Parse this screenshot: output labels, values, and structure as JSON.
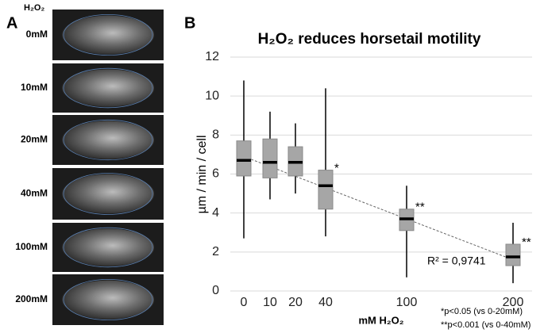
{
  "panel_a": {
    "label": "A",
    "header": "H₂O₂",
    "rows": [
      "0mM",
      "10mM",
      "20mM",
      "40mM",
      "100mM",
      "200mM"
    ]
  },
  "panel_b_label": "B",
  "chart_data": {
    "type": "box",
    "title": "H₂O₂  reduces horsetail motility",
    "y_label": "µm / min / cell",
    "x_label": "mM H₂O₂",
    "categories": [
      "0",
      "10",
      "20",
      "40",
      "100",
      "200"
    ],
    "boxes": [
      {
        "low": 2.7,
        "q1": 5.9,
        "median": 6.7,
        "q3": 7.7,
        "high": 10.8
      },
      {
        "low": 4.7,
        "q1": 5.8,
        "median": 6.6,
        "q3": 7.8,
        "high": 9.2
      },
      {
        "low": 5.0,
        "q1": 5.9,
        "median": 6.6,
        "q3": 7.4,
        "high": 8.6
      },
      {
        "low": 2.8,
        "q1": 4.2,
        "median": 5.4,
        "q3": 6.2,
        "high": 10.4
      },
      {
        "low": 0.7,
        "q1": 3.1,
        "median": 3.7,
        "q3": 4.2,
        "high": 5.4
      },
      {
        "low": 0.4,
        "q1": 1.3,
        "median": 1.75,
        "q3": 2.4,
        "high": 3.5
      }
    ],
    "color": "#a6a6a6",
    "annotations": [
      {
        "category": "40",
        "text": "*"
      },
      {
        "category": "100",
        "text": "**"
      },
      {
        "category": "200",
        "text": "**"
      }
    ],
    "trendline": {
      "values": [
        6.9,
        1.6
      ],
      "label": "R² = 0,9741"
    },
    "footnotes": [
      "*p<0.05 (vs 0-20mM)",
      "**p<0.001 (vs 0-40mM)"
    ],
    "ylim": [
      0,
      12
    ],
    "yticks": [
      0,
      2,
      4,
      6,
      8,
      10,
      12
    ],
    "grid": true
  }
}
